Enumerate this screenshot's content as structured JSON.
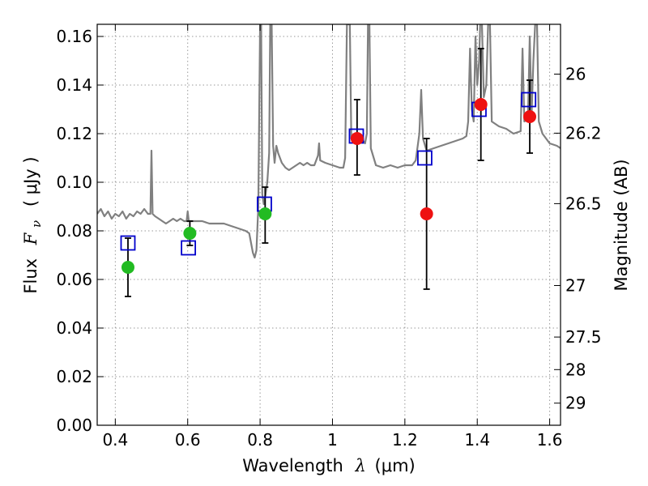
{
  "chart_data": {
    "type": "scatter",
    "xlabel": "Wavelength",
    "xlabel_symbol": "λ",
    "xlabel_unit": "(μm)",
    "ylabel": "Flux",
    "ylabel_symbol": "F",
    "ylabel_subscript": "ν",
    "ylabel_unit": "( μJy )",
    "y2label": "Magnitude (AB)",
    "xlim": [
      0.35,
      1.63
    ],
    "ylim": [
      0.0,
      0.165
    ],
    "grid": true,
    "x_ticks": [
      0.4,
      0.6,
      0.8,
      1.0,
      1.2,
      1.4,
      1.6
    ],
    "x_tick_labels": [
      "0.4",
      "0.6",
      "0.8",
      "1",
      "1.2",
      "1.4",
      "1.6"
    ],
    "y_ticks": [
      0.0,
      0.02,
      0.04,
      0.06,
      0.08,
      0.1,
      0.12,
      0.14,
      0.16
    ],
    "y_tick_labels": [
      "0.00",
      "0.02",
      "0.04",
      "0.06",
      "0.08",
      "0.10",
      "0.12",
      "0.14",
      "0.16"
    ],
    "y2_ticks": [
      {
        "label": "26",
        "flux": 0.1445
      },
      {
        "label": "26.2",
        "flux": 0.1202
      },
      {
        "label": "26.5",
        "flux": 0.0912
      },
      {
        "label": "27",
        "flux": 0.0575
      },
      {
        "label": "27.5",
        "flux": 0.0363
      },
      {
        "label": "28",
        "flux": 0.0229
      },
      {
        "label": "29",
        "flux": 0.0091
      }
    ],
    "colors": {
      "model": "#808080",
      "observed_optical": "#22bb22",
      "observed_nir": "#ee1111",
      "model_photometry": "#0000cc",
      "errorbar": "#000000",
      "grid": "#999999"
    },
    "model_spectrum": [
      [
        0.35,
        0.087
      ],
      [
        0.36,
        0.089
      ],
      [
        0.37,
        0.086
      ],
      [
        0.38,
        0.088
      ],
      [
        0.39,
        0.085
      ],
      [
        0.4,
        0.087
      ],
      [
        0.41,
        0.086
      ],
      [
        0.42,
        0.088
      ],
      [
        0.43,
        0.085
      ],
      [
        0.44,
        0.087
      ],
      [
        0.45,
        0.086
      ],
      [
        0.46,
        0.088
      ],
      [
        0.47,
        0.087
      ],
      [
        0.48,
        0.089
      ],
      [
        0.49,
        0.087
      ],
      [
        0.497,
        0.087
      ],
      [
        0.5,
        0.113
      ],
      [
        0.503,
        0.087
      ],
      [
        0.51,
        0.086
      ],
      [
        0.52,
        0.085
      ],
      [
        0.53,
        0.084
      ],
      [
        0.54,
        0.083
      ],
      [
        0.55,
        0.084
      ],
      [
        0.56,
        0.085
      ],
      [
        0.57,
        0.084
      ],
      [
        0.58,
        0.085
      ],
      [
        0.59,
        0.084
      ],
      [
        0.597,
        0.084
      ],
      [
        0.6,
        0.088
      ],
      [
        0.603,
        0.084
      ],
      [
        0.62,
        0.084
      ],
      [
        0.64,
        0.084
      ],
      [
        0.66,
        0.083
      ],
      [
        0.68,
        0.083
      ],
      [
        0.7,
        0.083
      ],
      [
        0.72,
        0.082
      ],
      [
        0.74,
        0.081
      ],
      [
        0.76,
        0.08
      ],
      [
        0.77,
        0.079
      ],
      [
        0.78,
        0.071
      ],
      [
        0.785,
        0.069
      ],
      [
        0.79,
        0.072
      ],
      [
        0.795,
        0.09
      ],
      [
        0.8,
        0.165
      ],
      [
        0.803,
        0.165
      ],
      [
        0.806,
        0.095
      ],
      [
        0.81,
        0.091
      ],
      [
        0.815,
        0.095
      ],
      [
        0.82,
        0.1
      ],
      [
        0.825,
        0.112
      ],
      [
        0.828,
        0.165
      ],
      [
        0.832,
        0.165
      ],
      [
        0.836,
        0.115
      ],
      [
        0.84,
        0.108
      ],
      [
        0.845,
        0.115
      ],
      [
        0.85,
        0.112
      ],
      [
        0.86,
        0.108
      ],
      [
        0.87,
        0.106
      ],
      [
        0.88,
        0.105
      ],
      [
        0.89,
        0.106
      ],
      [
        0.9,
        0.107
      ],
      [
        0.91,
        0.108
      ],
      [
        0.92,
        0.107
      ],
      [
        0.93,
        0.108
      ],
      [
        0.94,
        0.107
      ],
      [
        0.95,
        0.107
      ],
      [
        0.96,
        0.111
      ],
      [
        0.963,
        0.116
      ],
      [
        0.966,
        0.109
      ],
      [
        0.98,
        0.108
      ],
      [
        1.0,
        0.107
      ],
      [
        1.02,
        0.106
      ],
      [
        1.03,
        0.106
      ],
      [
        1.035,
        0.11
      ],
      [
        1.04,
        0.165
      ],
      [
        1.048,
        0.165
      ],
      [
        1.052,
        0.118
      ],
      [
        1.06,
        0.119
      ],
      [
        1.07,
        0.117
      ],
      [
        1.08,
        0.118
      ],
      [
        1.09,
        0.116
      ],
      [
        1.095,
        0.12
      ],
      [
        1.098,
        0.165
      ],
      [
        1.102,
        0.165
      ],
      [
        1.106,
        0.114
      ],
      [
        1.12,
        0.107
      ],
      [
        1.14,
        0.106
      ],
      [
        1.16,
        0.107
      ],
      [
        1.18,
        0.106
      ],
      [
        1.2,
        0.107
      ],
      [
        1.22,
        0.107
      ],
      [
        1.23,
        0.109
      ],
      [
        1.24,
        0.12
      ],
      [
        1.245,
        0.138
      ],
      [
        1.25,
        0.118
      ],
      [
        1.26,
        0.113
      ],
      [
        1.28,
        0.114
      ],
      [
        1.3,
        0.115
      ],
      [
        1.32,
        0.116
      ],
      [
        1.34,
        0.117
      ],
      [
        1.36,
        0.118
      ],
      [
        1.37,
        0.119
      ],
      [
        1.375,
        0.125
      ],
      [
        1.38,
        0.155
      ],
      [
        1.385,
        0.13
      ],
      [
        1.39,
        0.125
      ],
      [
        1.395,
        0.16
      ],
      [
        1.4,
        0.14
      ],
      [
        1.405,
        0.15
      ],
      [
        1.408,
        0.165
      ],
      [
        1.413,
        0.165
      ],
      [
        1.418,
        0.135
      ],
      [
        1.425,
        0.14
      ],
      [
        1.43,
        0.165
      ],
      [
        1.435,
        0.165
      ],
      [
        1.44,
        0.125
      ],
      [
        1.46,
        0.123
      ],
      [
        1.48,
        0.122
      ],
      [
        1.5,
        0.12
      ],
      [
        1.52,
        0.121
      ],
      [
        1.525,
        0.155
      ],
      [
        1.53,
        0.125
      ],
      [
        1.54,
        0.126
      ],
      [
        1.545,
        0.16
      ],
      [
        1.55,
        0.128
      ],
      [
        1.555,
        0.15
      ],
      [
        1.56,
        0.165
      ],
      [
        1.565,
        0.165
      ],
      [
        1.57,
        0.125
      ],
      [
        1.58,
        0.12
      ],
      [
        1.6,
        0.116
      ],
      [
        1.62,
        0.115
      ],
      [
        1.63,
        0.114
      ]
    ],
    "observed_points": [
      {
        "x": 0.435,
        "y": 0.065,
        "err_low": 0.053,
        "err_high": 0.077,
        "color": "observed_optical"
      },
      {
        "x": 0.606,
        "y": 0.079,
        "err_low": 0.074,
        "err_high": 0.084,
        "color": "observed_optical"
      },
      {
        "x": 0.814,
        "y": 0.087,
        "err_low": 0.075,
        "err_high": 0.098,
        "color": "observed_optical"
      },
      {
        "x": 1.068,
        "y": 0.118,
        "err_low": 0.103,
        "err_high": 0.134,
        "color": "observed_nir"
      },
      {
        "x": 1.26,
        "y": 0.087,
        "err_low": 0.056,
        "err_high": 0.118,
        "color": "observed_nir"
      },
      {
        "x": 1.41,
        "y": 0.132,
        "err_low": 0.109,
        "err_high": 0.155,
        "color": "observed_nir"
      },
      {
        "x": 1.545,
        "y": 0.127,
        "err_low": 0.112,
        "err_high": 0.142,
        "color": "observed_nir"
      }
    ],
    "model_photometry": [
      {
        "x": 0.435,
        "y": 0.075
      },
      {
        "x": 0.602,
        "y": 0.073
      },
      {
        "x": 0.812,
        "y": 0.091
      },
      {
        "x": 1.066,
        "y": 0.119
      },
      {
        "x": 1.255,
        "y": 0.11
      },
      {
        "x": 1.405,
        "y": 0.13
      },
      {
        "x": 1.542,
        "y": 0.134
      }
    ]
  }
}
